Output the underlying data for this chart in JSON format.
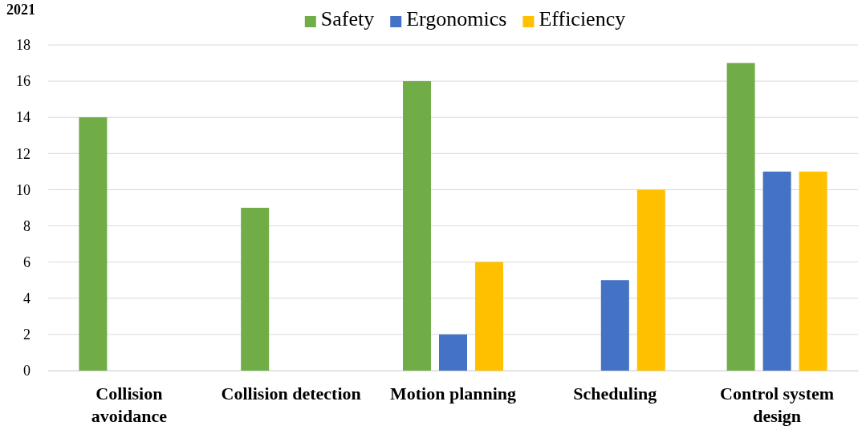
{
  "chart_data": {
    "type": "bar",
    "title": "2021",
    "categories": [
      "Collision avoidance",
      "Collision detection",
      "Motion planning",
      "Scheduling",
      "Control system design"
    ],
    "series": [
      {
        "name": "Safety",
        "color": "#70ad47",
        "values": [
          14,
          9,
          16,
          0,
          17
        ]
      },
      {
        "name": "Ergonomics",
        "color": "#4472c4",
        "values": [
          0,
          0,
          2,
          5,
          11
        ]
      },
      {
        "name": "Efficiency",
        "color": "#ffc000",
        "values": [
          0,
          0,
          6,
          10,
          11
        ]
      }
    ],
    "ylim": [
      0,
      18
    ],
    "yticks": [
      0,
      2,
      4,
      6,
      8,
      10,
      12,
      14,
      16,
      18
    ],
    "grid": "y",
    "legend": "top"
  }
}
